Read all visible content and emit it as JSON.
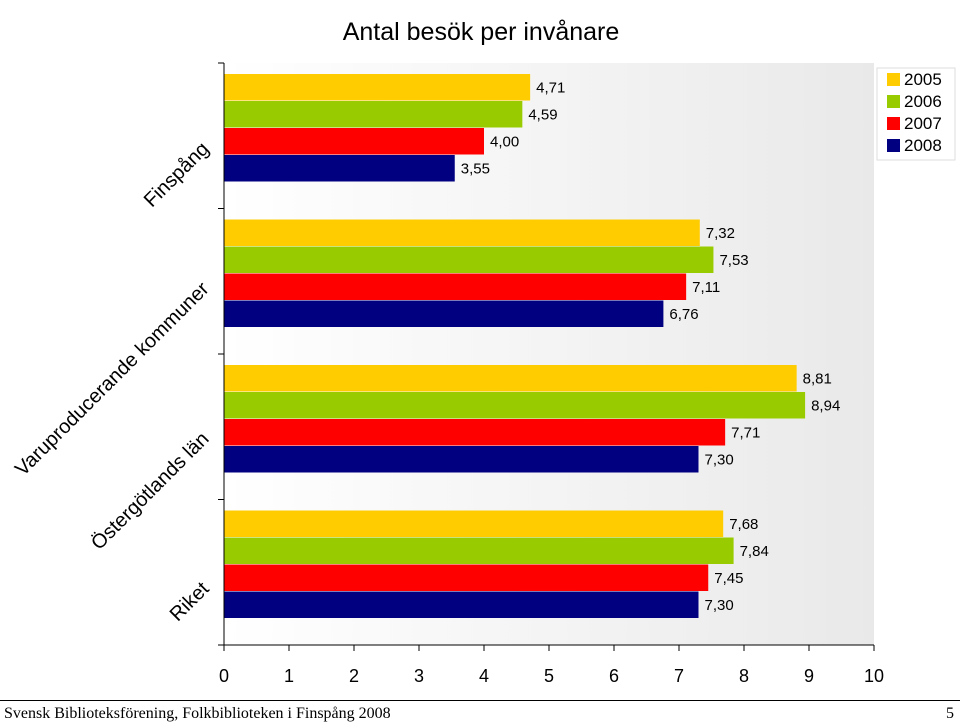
{
  "footer": {
    "source": "Svensk Biblioteksförening, Folkbiblioteken i Finspång 2008",
    "page_number": "5"
  },
  "chart_data": {
    "type": "bar",
    "orientation": "horizontal",
    "title": "Antal besök per invånare",
    "categories": [
      "Finspång",
      "Varuproducerande kommuner",
      "Östergötlands län",
      "Riket"
    ],
    "series": [
      {
        "name": "2005",
        "color": "#FFCC00",
        "values": [
          4.71,
          7.32,
          8.81,
          7.68
        ],
        "labels": [
          "4,71",
          "7,32",
          "8,81",
          "7,68"
        ]
      },
      {
        "name": "2006",
        "color": "#99CC00",
        "values": [
          4.59,
          7.53,
          8.94,
          7.84
        ],
        "labels": [
          "4,59",
          "7,53",
          "8,94",
          "7,84"
        ]
      },
      {
        "name": "2007",
        "color": "#FF0000",
        "values": [
          4.0,
          7.11,
          7.71,
          7.45
        ],
        "labels": [
          "4,00",
          "7,11",
          "7,71",
          "7,45"
        ]
      },
      {
        "name": "2008",
        "color": "#000080",
        "values": [
          3.55,
          6.76,
          7.3,
          7.3
        ],
        "labels": [
          "3,55",
          "6,76",
          "7,30",
          "7,30"
        ]
      }
    ],
    "xlim": [
      0,
      10
    ],
    "xticks": [
      "0",
      "1",
      "2",
      "3",
      "4",
      "5",
      "6",
      "7",
      "8",
      "9",
      "10"
    ],
    "grid": false,
    "legend_position": "top-right",
    "plot_background": "gradient light gray"
  }
}
